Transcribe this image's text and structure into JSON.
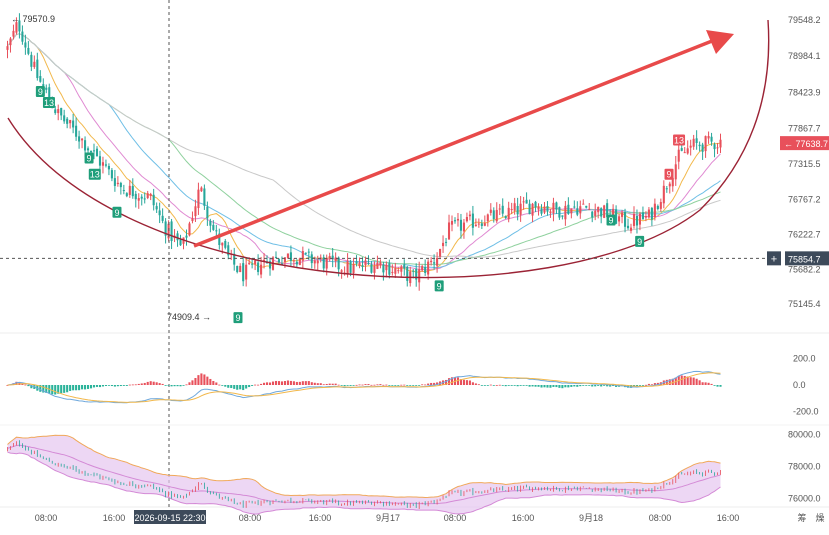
{
  "colors": {
    "up": "#e8505b",
    "down": "#26a69a",
    "curve": "#9b2335",
    "arrow": "#e84a4a",
    "crosshair": "#555555",
    "axis_text": "#555555",
    "price_tag_current": "#e8505b",
    "price_tag_cross": "#3d4a5a",
    "time_tag": "#3d4a5a",
    "bb_fill": "#e6c6ef",
    "bb_line": "#d48ad6",
    "bb_upper": "#f0a85a",
    "ma_colors": [
      "#f2b84b",
      "#e08ad2",
      "#6fbfe6",
      "#8fd19e",
      "#c9c9c9"
    ],
    "macd_dif": "#6fa8dc",
    "macd_dea": "#f2b84b"
  },
  "chart_data": {
    "type": "candlestick",
    "main": {
      "y_ticks": [
        "79548.2",
        "78984.1",
        "78423.9",
        "77867.7",
        "77315.5",
        "76767.2",
        "76222.7",
        "75682.2",
        "75145.4"
      ],
      "ylim": [
        74900,
        79700
      ],
      "high_marker": "79570.9",
      "low_marker": "74909.4",
      "current_price": "77638.7",
      "crosshair_price": "75854.7",
      "seq_labels": [
        {
          "text": "9",
          "kind": "down",
          "x_frac": 0.048,
          "price": 78430
        },
        {
          "text": "13",
          "kind": "down",
          "x_frac": 0.06,
          "price": 78260
        },
        {
          "text": "9",
          "kind": "down",
          "x_frac": 0.116,
          "price": 77400
        },
        {
          "text": "13",
          "kind": "down",
          "x_frac": 0.124,
          "price": 77150
        },
        {
          "text": "9",
          "kind": "down",
          "x_frac": 0.155,
          "price": 76560
        },
        {
          "text": "9",
          "kind": "down",
          "x_frac": 0.324,
          "price": 74930
        },
        {
          "text": "9",
          "kind": "down",
          "x_frac": 0.605,
          "price": 75420
        },
        {
          "text": "9",
          "kind": "down",
          "x_frac": 0.845,
          "price": 76440
        },
        {
          "text": "9",
          "kind": "down",
          "x_frac": 0.885,
          "price": 76110
        },
        {
          "text": "9",
          "kind": "up",
          "x_frac": 0.926,
          "price": 77150
        },
        {
          "text": "13",
          "kind": "up",
          "x_frac": 0.94,
          "price": 77680
        }
      ],
      "shape": "rounded bottom",
      "arrow": "up-right"
    },
    "macd": {
      "y_ticks": [
        "200.0",
        "0.0",
        "-200.0"
      ],
      "ylim": [
        -300,
        300
      ]
    },
    "bands": {
      "y_ticks": [
        "80000.0",
        "78000.0",
        "76000.0"
      ],
      "ylim": [
        75600,
        80600
      ]
    },
    "x_ticks": [
      "08:00",
      "16:00",
      "2026-09-15 22:30",
      "08:00",
      "16:00",
      "9月17",
      "08:00",
      "16:00",
      "9月18",
      "08:00",
      "16:00"
    ],
    "corner_labels": [
      "筹",
      "燥"
    ],
    "crosshair_time": "2026-09-15 22:30",
    "series_anchors": [
      [
        0,
        79100
      ],
      [
        0.015,
        79500
      ],
      [
        0.04,
        78700
      ],
      [
        0.07,
        78100
      ],
      [
        0.1,
        77750
      ],
      [
        0.13,
        77350
      ],
      [
        0.16,
        76950
      ],
      [
        0.2,
        76800
      ],
      [
        0.22,
        76350
      ],
      [
        0.245,
        76000
      ],
      [
        0.27,
        76950
      ],
      [
        0.29,
        76250
      ],
      [
        0.31,
        75850
      ],
      [
        0.33,
        75600
      ],
      [
        0.36,
        75800
      ],
      [
        0.4,
        75900
      ],
      [
        0.44,
        75800
      ],
      [
        0.48,
        75700
      ],
      [
        0.52,
        75780
      ],
      [
        0.55,
        75650
      ],
      [
        0.57,
        75550
      ],
      [
        0.6,
        75850
      ],
      [
        0.62,
        76300
      ],
      [
        0.66,
        76450
      ],
      [
        0.7,
        76550
      ],
      [
        0.74,
        76700
      ],
      [
        0.77,
        76600
      ],
      [
        0.8,
        76650
      ],
      [
        0.83,
        76600
      ],
      [
        0.87,
        76400
      ],
      [
        0.9,
        76500
      ],
      [
        0.92,
        76900
      ],
      [
        0.94,
        77400
      ],
      [
        0.96,
        77600
      ],
      [
        1.0,
        77660
      ]
    ]
  }
}
